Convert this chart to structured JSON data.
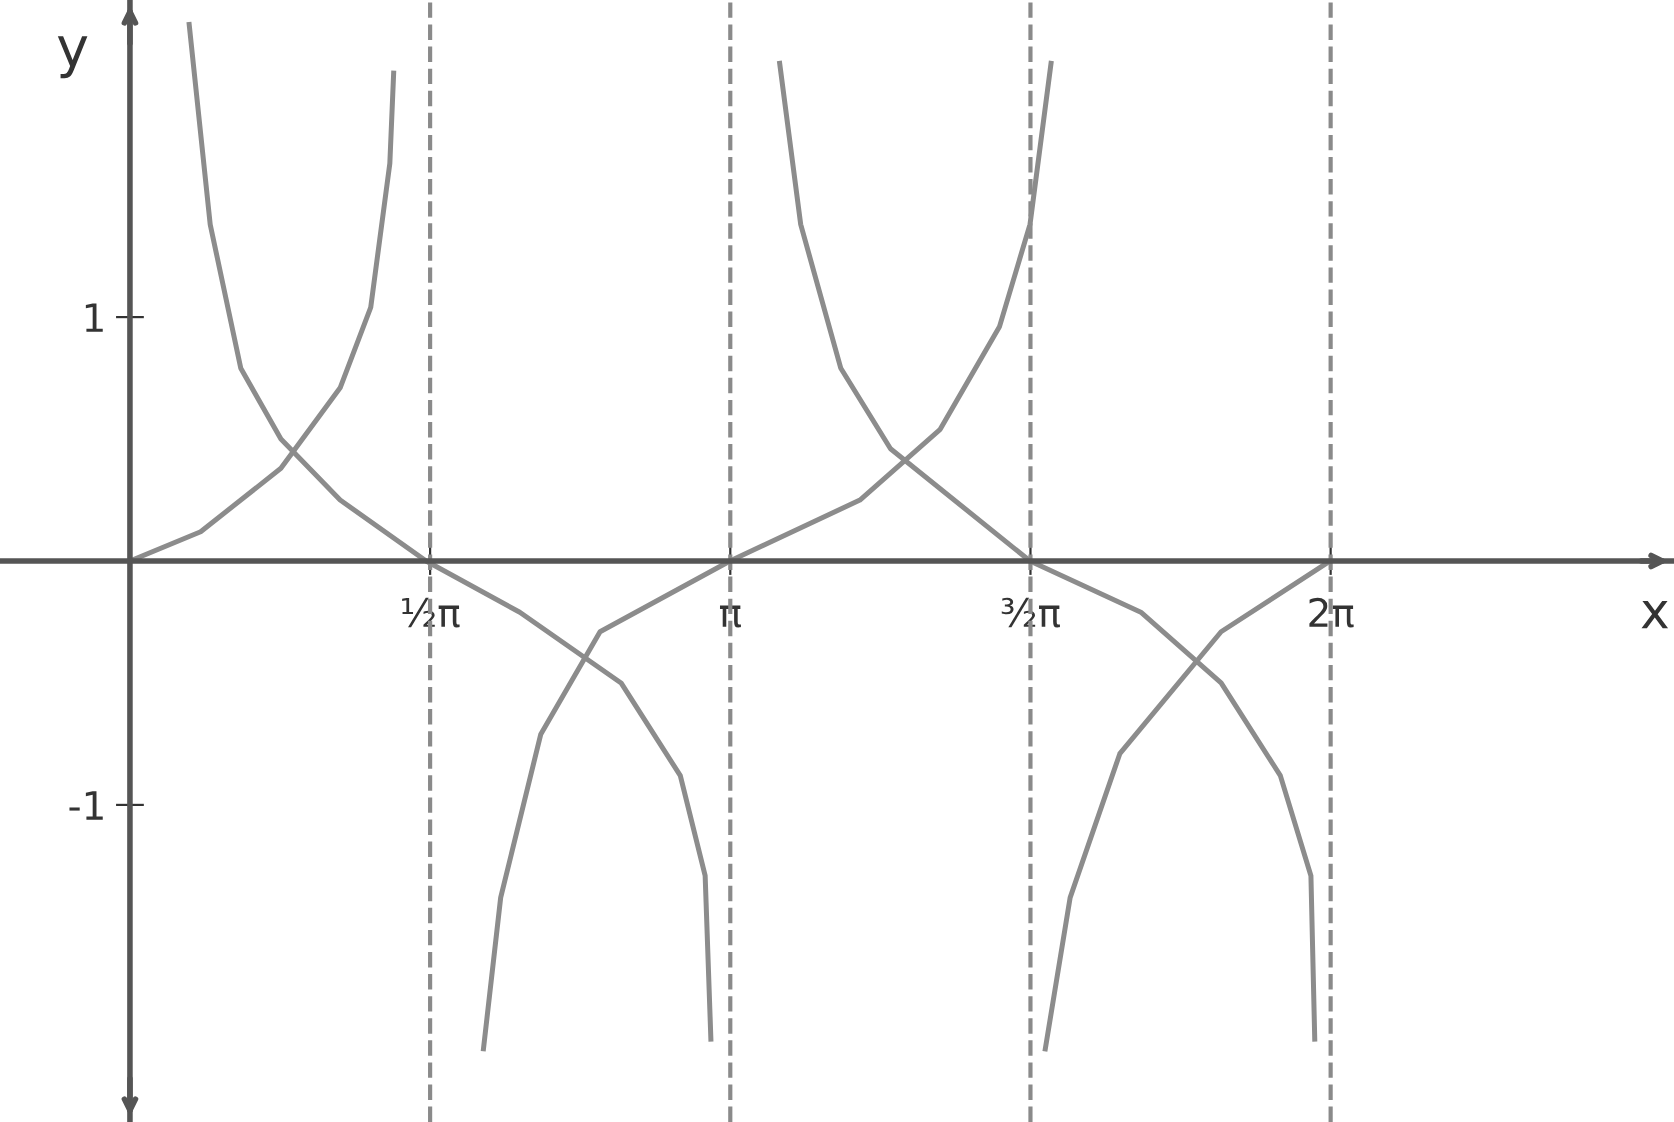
{
  "chart_data": {
    "type": "line",
    "xlabel": "x",
    "ylabel": "y",
    "xlim": [
      -0.68,
      8.08
    ],
    "ylim": [
      -2.3,
      2.3
    ],
    "xticks": [
      {
        "value": 1.5708,
        "label": "½π"
      },
      {
        "value": 3.1416,
        "label": "π"
      },
      {
        "value": 4.7124,
        "label": "³⁄₂π"
      },
      {
        "value": 6.2832,
        "label": "2π"
      }
    ],
    "yticks": [
      {
        "value": 1,
        "label": "1"
      },
      {
        "value": -1,
        "label": "-1"
      }
    ],
    "ref_lines": [
      {
        "axis": "x",
        "value": 1.5708,
        "color": "#8a8a8a",
        "line_style": "dashed"
      },
      {
        "axis": "x",
        "value": 3.1416,
        "color": "#8a8a8a",
        "line_style": "dashed"
      },
      {
        "axis": "x",
        "value": 4.7124,
        "color": "#8a8a8a",
        "line_style": "dashed"
      },
      {
        "axis": "x",
        "value": 6.2832,
        "color": "#8a8a8a",
        "line_style": "dashed"
      }
    ],
    "line_style": "solid",
    "marker": "none",
    "legend": false,
    "grid": false,
    "series": [
      {
        "color": "#8c8c8c",
        "x": [
          0,
          0.37,
          0.79,
          1.1,
          1.26,
          1.36,
          1.38
        ],
        "values": [
          0,
          0.12,
          0.38,
          0.71,
          1.04,
          1.63,
          2.0
        ]
      },
      {
        "color": "#8c8c8c",
        "x": [
          0.31,
          0.42,
          0.58,
          0.79,
          1.1,
          1.55,
          2.04,
          2.57,
          2.88,
          3.01,
          3.04
        ],
        "values": [
          2.2,
          1.38,
          0.79,
          0.5,
          0.25,
          0,
          -0.21,
          -0.5,
          -0.88,
          -1.29,
          -1.96
        ]
      },
      {
        "color": "#8c8c8c",
        "x": [
          1.85,
          1.94,
          2.15,
          2.46,
          3.14,
          3.82,
          4.24,
          4.55,
          4.71,
          4.82
        ],
        "values": [
          -2.0,
          -1.38,
          -0.71,
          -0.29,
          0,
          0.25,
          0.54,
          0.96,
          1.38,
          2.04
        ]
      },
      {
        "color": "#8c8c8c",
        "x": [
          3.4,
          3.51,
          3.72,
          3.98,
          4.71,
          5.29,
          5.71,
          6.02,
          6.18,
          6.2
        ],
        "values": [
          2.04,
          1.38,
          0.79,
          0.46,
          0,
          -0.21,
          -0.5,
          -0.88,
          -1.29,
          -1.96
        ]
      },
      {
        "color": "#8c8c8c",
        "x": [
          4.79,
          4.92,
          5.18,
          5.71,
          6.28
        ],
        "values": [
          -2.0,
          -1.38,
          -0.79,
          -0.29,
          0
        ]
      }
    ]
  }
}
